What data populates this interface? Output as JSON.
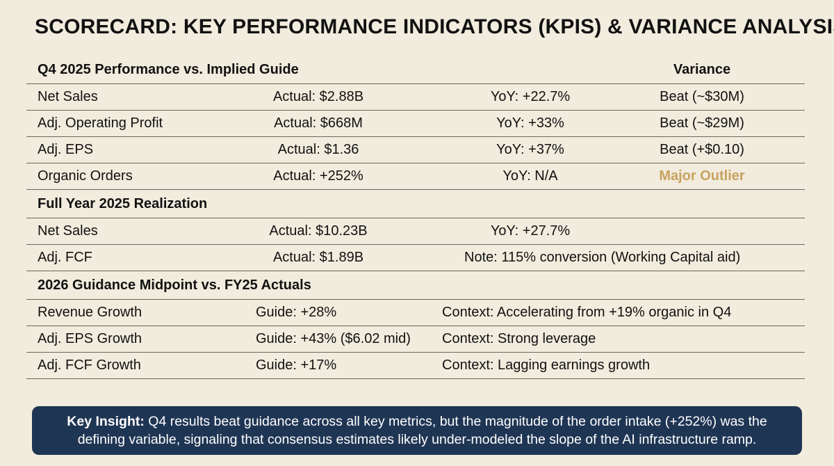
{
  "title": "SCORECARD: KEY PERFORMANCE INDICATORS (KPIS) & VARIANCE ANALYSIS",
  "q4": {
    "heading": "Q4 2025 Performance vs. Implied Guide",
    "variance_heading": "Variance",
    "rows": [
      {
        "metric": "Net Sales",
        "actual": "Actual: $2.88B",
        "yoy": "YoY: +22.7%",
        "variance": "Beat (~$30M)"
      },
      {
        "metric": "Adj. Operating Profit",
        "actual": "Actual: $668M",
        "yoy": "YoY: +33%",
        "variance": "Beat (~$29M)"
      },
      {
        "metric": "Adj. EPS",
        "actual": "Actual: $1.36",
        "yoy": "YoY: +37%",
        "variance": "Beat (+$0.10)"
      },
      {
        "metric": "Organic Orders",
        "actual": "Actual: +252%",
        "yoy": "YoY: N/A",
        "variance": "Major Outlier"
      }
    ]
  },
  "fy": {
    "heading": "Full Year 2025 Realization",
    "rows": [
      {
        "metric": "Net Sales",
        "actual": "Actual: $10.23B",
        "yoy": "YoY: +27.7%"
      },
      {
        "metric": "Adj. FCF",
        "actual": "Actual: $1.89B",
        "note": "Note: 115% conversion (Working Capital aid)"
      }
    ]
  },
  "guide": {
    "heading": "2026 Guidance Midpoint vs. FY25 Actuals",
    "rows": [
      {
        "metric": "Revenue Growth",
        "guide": "Guide: +28%",
        "context": "Context: Accelerating from +19% organic in Q4"
      },
      {
        "metric": "Adj. EPS Growth",
        "guide": "Guide: +43% ($6.02 mid)",
        "context": "Context: Strong leverage"
      },
      {
        "metric": "Adj. FCF Growth",
        "guide": "Guide: +17%",
        "context": "Context: Lagging earnings growth"
      }
    ]
  },
  "insight": {
    "label": "Key Insight:",
    "text": " Q4 results beat guidance across all key metrics, but the magnitude of the order intake (+252%) was the defining variable, signaling that consensus estimates likely under-modeled the slope of the AI infrastructure ramp."
  },
  "colors": {
    "background": "#f1ecdd",
    "outlier": "#c8a260",
    "insight_bg": "#1f3554"
  }
}
